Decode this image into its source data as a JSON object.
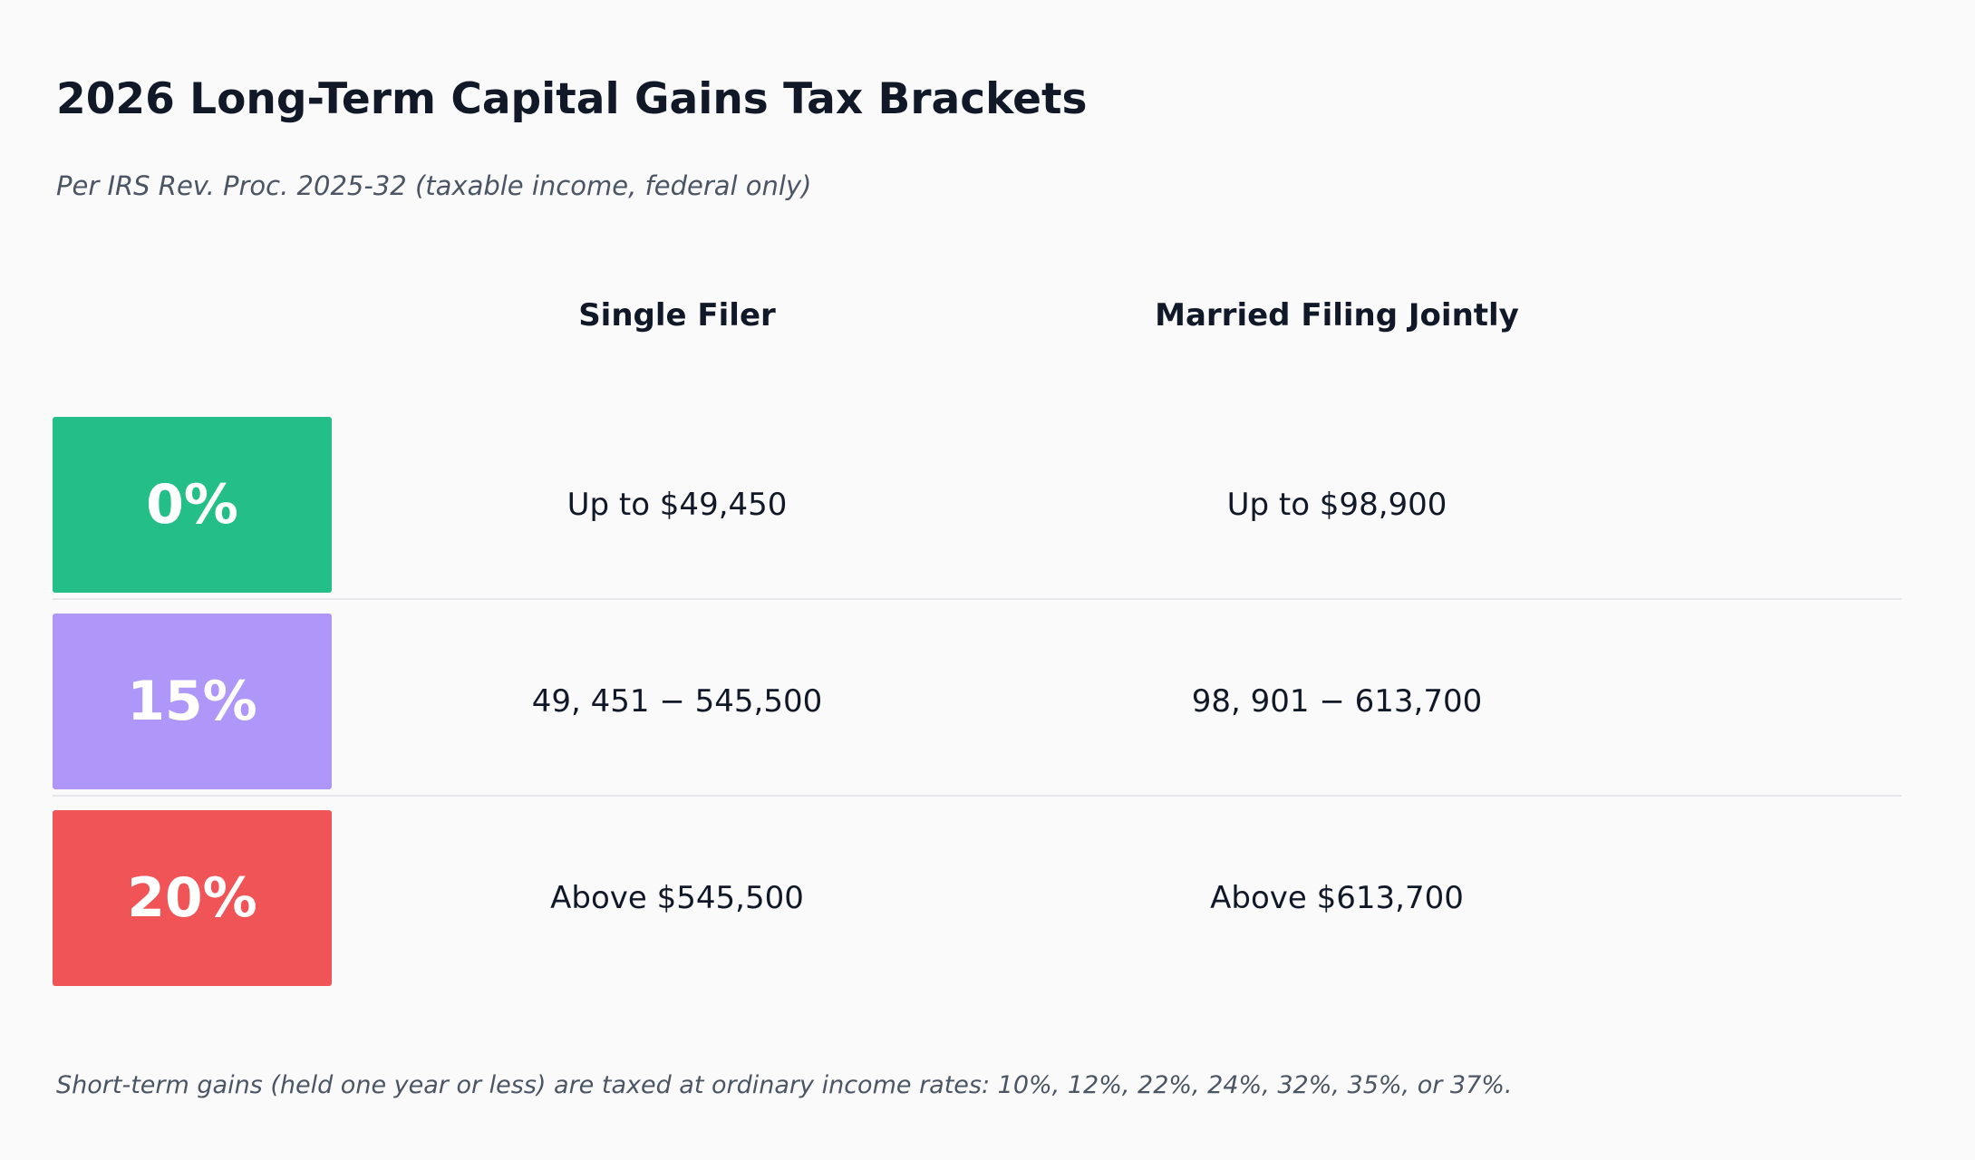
{
  "title": "2026 Long-Term Capital Gains Tax Brackets",
  "subtitle": "Per IRS Rev. Proc. 2025-32 (taxable income, federal only)",
  "columns": {
    "single": "Single Filer",
    "married": "Married Filing Jointly"
  },
  "brackets": [
    {
      "rate": "0%",
      "color": "#24bf88",
      "single": "Up to $49,450",
      "married": "Up to $98,900"
    },
    {
      "rate": "15%",
      "color": "#af97fa",
      "single": "49, 451 − 545,500",
      "married": "98, 901 − 613,700"
    },
    {
      "rate": "20%",
      "color": "#f05456",
      "single": "Above $545,500",
      "married": "Above $613,700"
    }
  ],
  "footnote": "Short-term gains (held one year or less) are taxed at ordinary income rates: 10%, 12%, 22%, 24%, 32%, 35%, or 37%."
}
